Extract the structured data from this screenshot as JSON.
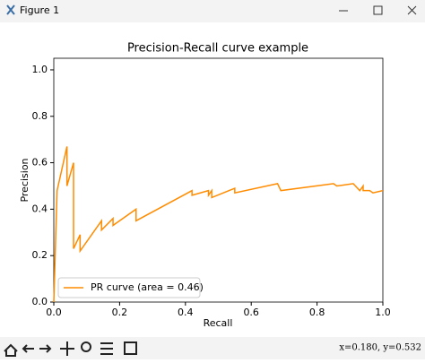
{
  "window": {
    "title": "Figure 1",
    "status": "x=0.180, y=0.532"
  },
  "chart_data": {
    "type": "line",
    "title": "Precision-Recall curve example",
    "x_label": "Recall",
    "y_label": "Precision",
    "x": [
      0,
      0.01,
      0.04,
      0.04,
      0.06,
      0.06,
      0.08,
      0.08,
      0.145,
      0.145,
      0.18,
      0.18,
      0.25,
      0.25,
      0.42,
      0.42,
      0.47,
      0.47,
      0.48,
      0.48,
      0.55,
      0.55,
      0.68,
      0.69,
      0.85,
      0.86,
      0.91,
      0.93,
      0.94,
      0.94,
      0.96,
      0.97,
      1.0
    ],
    "series": [
      {
        "name": "PR curve (area = 0.46)",
        "color": "#ff8c00",
        "values": [
          0.0,
          0.48,
          0.67,
          0.5,
          0.6,
          0.23,
          0.29,
          0.22,
          0.35,
          0.31,
          0.36,
          0.33,
          0.4,
          0.35,
          0.48,
          0.46,
          0.48,
          0.46,
          0.48,
          0.45,
          0.49,
          0.47,
          0.51,
          0.48,
          0.51,
          0.5,
          0.51,
          0.48,
          0.5,
          0.48,
          0.48,
          0.47,
          0.48
        ]
      }
    ],
    "xlim": [
      0,
      1
    ],
    "ylim": [
      0,
      1.05
    ],
    "xticks": [
      {
        "value": 0,
        "label": "0.0"
      },
      {
        "value": 0.2,
        "label": "0.2"
      },
      {
        "value": 0.4,
        "label": "0.4"
      },
      {
        "value": 0.6,
        "label": "0.6"
      },
      {
        "value": 0.8,
        "label": "0.8"
      },
      {
        "value": 1,
        "label": "1.0"
      }
    ],
    "yticks": [
      {
        "value": 0,
        "label": "0.0"
      },
      {
        "value": 0.2,
        "label": "0.2"
      },
      {
        "value": 0.4,
        "label": "0.4"
      },
      {
        "value": 0.6,
        "label": "0.6"
      },
      {
        "value": 0.8,
        "label": "0.8"
      },
      {
        "value": 1,
        "label": "1.0"
      }
    ],
    "legend": "lower left",
    "grid": false
  }
}
